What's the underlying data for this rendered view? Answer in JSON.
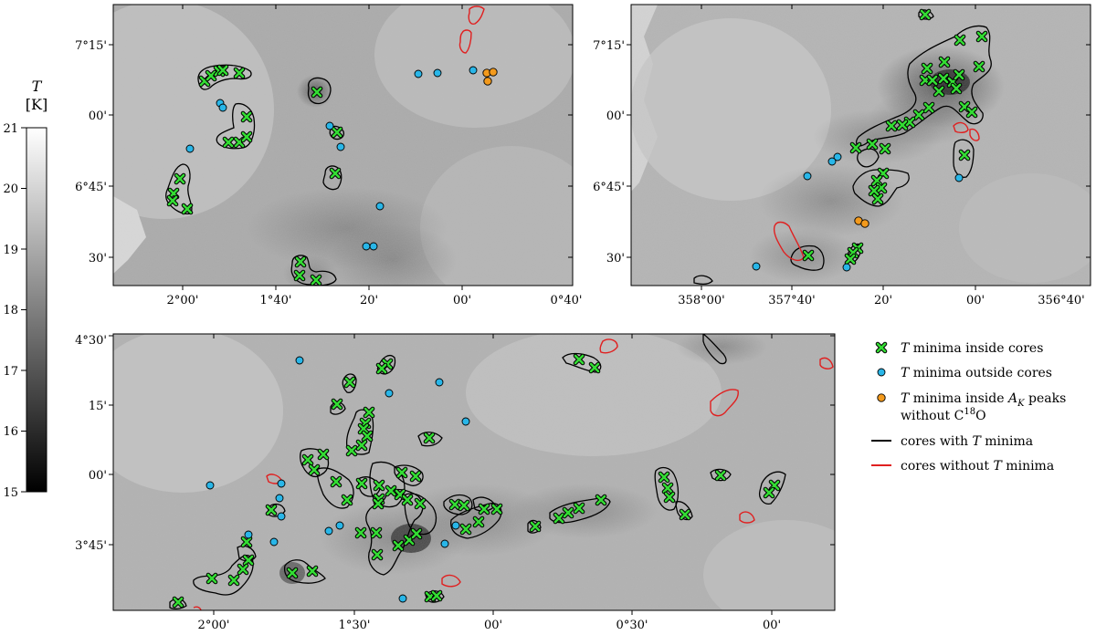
{
  "colorbar": {
    "symbol": "T",
    "unit": "[K]",
    "ticks": [
      "21",
      "20",
      "19",
      "18",
      "17",
      "16",
      "15"
    ],
    "range": [
      15,
      21
    ],
    "colormap": "gray"
  },
  "panels": [
    {
      "id": "top-left",
      "x_ticks": [
        "2°00'",
        "1°40'",
        "20'",
        "00'",
        "0°40'"
      ],
      "y_ticks": [
        "7°15'",
        "00'",
        "6°45'",
        "30'"
      ]
    },
    {
      "id": "top-right",
      "x_ticks": [
        "358°00'",
        "357°40'",
        "20'",
        "00'",
        "356°40'"
      ],
      "y_ticks": [
        "7°15'",
        "00'",
        "6°45'",
        "30'"
      ]
    },
    {
      "id": "bottom",
      "x_ticks": [
        "2°00'",
        "1°30'",
        "00'",
        "0°30'",
        "00'"
      ],
      "y_ticks": [
        "4°30'",
        "15'",
        "00'",
        "3°45'"
      ]
    }
  ],
  "legend": {
    "minima_inside": {
      "pre": "",
      "italic": "T",
      "post": " minima inside cores"
    },
    "minima_outside": {
      "pre": "",
      "italic": "T",
      "post": " minima outside cores"
    },
    "minima_ak_line1": {
      "pre": "",
      "italic": "T",
      "mid": " minima inside ",
      "italic2": "A",
      "sub": "K",
      "post": " peaks"
    },
    "minima_ak_line2": {
      "pre": "without C",
      "sup": "18",
      "post": "O"
    },
    "cores_with": {
      "pre": "cores with ",
      "italic": "T",
      "post": " minima"
    },
    "cores_without": {
      "pre": "cores without ",
      "italic": "T",
      "post": " minima"
    }
  },
  "colors": {
    "marker_inside": "#33dd33",
    "marker_outside": "#29b6e8",
    "marker_ak": "#f39a1c",
    "contour_with": "#000000",
    "contour_without": "#e02020"
  }
}
